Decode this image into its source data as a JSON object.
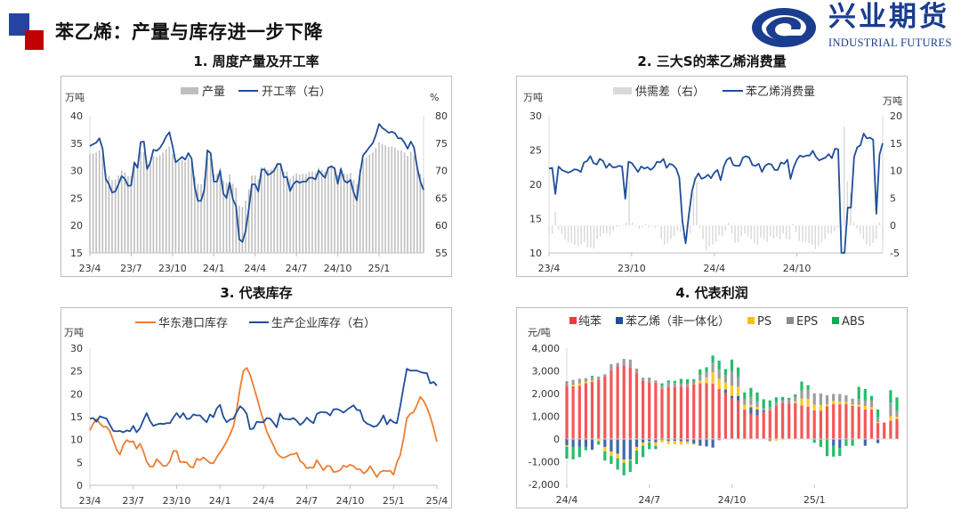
{
  "header": {
    "title": "苯乙烯：产量与库存进一步下降",
    "logo_cn": "兴业期货",
    "logo_en": "INDUSTRIAL FUTURES",
    "colors": {
      "blue": "#2444a0",
      "red": "#c00000"
    }
  },
  "panels": [
    {
      "title": "1. 周度产量及开工率"
    },
    {
      "title": "2. 三大S的苯乙烯消费量"
    },
    {
      "title": "3. 代表库存"
    },
    {
      "title": "4. 代表利润"
    }
  ],
  "chart_data": [
    {
      "type": "bar+line",
      "y_unit_left": "万吨",
      "y_unit_right": "%",
      "ylim_left": [
        15,
        40
      ],
      "ylim_right": [
        55,
        80
      ],
      "y_ticks_left": [
        "15",
        "20",
        "25",
        "30",
        "35",
        "40"
      ],
      "y_ticks_right": [
        "55",
        "60",
        "65",
        "70",
        "75",
        "80"
      ],
      "x_ticks": [
        "23/4",
        "23/7",
        "23/10",
        "24/1",
        "24/4",
        "24/7",
        "24/10",
        "25/1"
      ],
      "frequency": "weekly",
      "legend_position": "top",
      "grid": false,
      "series": [
        {
          "name": "产量",
          "type": "bar",
          "axis": "left",
          "color": "#bfbfbf",
          "values": [
            33.0,
            33.1,
            33.3,
            33.7,
            32.7,
            29.7,
            29.1,
            28.3,
            28.4,
            29.1,
            30.0,
            29.7,
            29.0,
            29.0,
            31.3,
            30.8,
            33.4,
            33.4,
            30.7,
            31.3,
            32.6,
            32.5,
            32.8,
            33.3,
            33.9,
            34.4,
            33.0,
            31.3,
            31.6,
            31.9,
            31.6,
            32.3,
            31.7,
            28.9,
            27.5,
            27.5,
            28.6,
            32.5,
            32.3,
            29.4,
            29.4,
            30.5,
            28.2,
            27.8,
            29.3,
            27.6,
            26.9,
            23.6,
            23.4,
            24.5,
            26.6,
            29.1,
            29.1,
            28.4,
            30.6,
            30.6,
            30.1,
            30.2,
            30.5,
            31.2,
            31.2,
            29.8,
            29.8,
            28.5,
            29.1,
            29.5,
            29.3,
            29.4,
            29.4,
            29.8,
            29.8,
            29.6,
            30.5,
            30.1,
            29.8,
            30.8,
            30.9,
            30.7,
            29.2,
            30.7,
            29.5,
            29.3,
            29.6,
            28.3,
            27.5,
            30.2,
            32.0,
            32.4,
            32.9,
            33.3,
            34.1,
            35.2,
            34.8,
            34.6,
            34.3,
            34.4,
            34.2,
            33.7,
            33.7,
            33.3,
            32.7,
            33.4,
            32.8,
            30.8,
            29.4,
            28.6
          ]
        },
        {
          "name": "开工率（右）",
          "type": "line",
          "axis": "right",
          "color": "#1f4e9a",
          "values": [
            74.5,
            74.8,
            75.1,
            75.9,
            74,
            68.5,
            67.5,
            66,
            66.2,
            67.5,
            69,
            68.5,
            67.2,
            67.3,
            71.5,
            70.5,
            75.2,
            75.3,
            70.3,
            71.5,
            73.8,
            73.6,
            74.1,
            75,
            76.2,
            77,
            74.5,
            71.5,
            72,
            72.5,
            72,
            73.2,
            72.2,
            67,
            64.5,
            64.5,
            66.5,
            73.7,
            73.2,
            68,
            68,
            70,
            65.8,
            65,
            67.8,
            64.8,
            63.5,
            57.5,
            57,
            59,
            63,
            67.5,
            67.5,
            66.2,
            70.2,
            70.2,
            69.2,
            69.5,
            70,
            71.2,
            71.2,
            68.8,
            68.8,
            66.3,
            67.5,
            68.1,
            67.8,
            68,
            68,
            68.7,
            68.7,
            68.4,
            70,
            69.3,
            68.7,
            70.5,
            70.8,
            70.4,
            67.6,
            70.3,
            68.2,
            67.8,
            68.3,
            66,
            64.6,
            69.5,
            72.8,
            73.5,
            74.3,
            75,
            76.5,
            78.5,
            77.8,
            77.4,
            76.9,
            77.1,
            76.8,
            75.9,
            75.9,
            75.1,
            74,
            75.3,
            74.2,
            70.5,
            68,
            66.5
          ]
        }
      ]
    },
    {
      "type": "bar+line",
      "y_unit_left": "万吨",
      "y_unit_right": "万吨",
      "ylim_left": [
        10,
        30
      ],
      "ylim_right": [
        -5,
        20
      ],
      "y_ticks_left": [
        "10",
        "15",
        "20",
        "25",
        "30"
      ],
      "y_ticks_right": [
        "-5",
        "0",
        "5",
        "10",
        "15",
        "20"
      ],
      "x_ticks": [
        "23/4",
        "23/10",
        "24/4",
        "24/10"
      ],
      "frequency": "weekly",
      "legend_position": "top",
      "grid": false,
      "series": [
        {
          "name": "供需差（右）",
          "type": "bar",
          "axis": "right",
          "color": "#d9d9d9",
          "values": [
            -1.5,
            -1.5,
            2.5,
            -0.8,
            -1.5,
            -2.5,
            -3,
            -3.2,
            -3.5,
            -3.8,
            -3.5,
            -3,
            -4,
            -4,
            -4.2,
            -2.5,
            -2,
            -1.5,
            -1.5,
            -1.8,
            -1,
            -0.3,
            -0.2,
            0.1,
            0.5,
            8,
            0.5,
            -0.2,
            -0.6,
            -0.3,
            0.2,
            -0.4,
            -0.2,
            -0.5,
            -0.3,
            -2.5,
            -3.5,
            -3.2,
            -2.5,
            -2,
            -1,
            -1.2,
            -2.5,
            -2.2,
            -1.5,
            5.9,
            8,
            -0.5,
            -2.5,
            -4.5,
            -3.8,
            -3.5,
            -3,
            -1.8,
            -2,
            -1,
            0.5,
            -1.5,
            -3.2,
            -3,
            -2,
            -1.5,
            -2,
            -2.5,
            -3.2,
            -3.5,
            -2.2,
            -2.5,
            -3,
            -2,
            -2.3,
            -2,
            -2.5,
            -1.5,
            -2.5,
            -2.6,
            0.3,
            -1.2,
            -2.8,
            -3,
            -3,
            -3.2,
            -3.5,
            -4.3,
            -3.8,
            -3,
            -2.5,
            -1.5,
            -1.5,
            -1,
            -0.3,
            -1.2,
            18,
            8,
            6,
            0.5,
            -0.5,
            -1.5,
            -2.5,
            -3.5,
            -3.8,
            -3.2,
            -2.5,
            0.5,
            -2.8
          ]
        },
        {
          "name": "苯乙烯消费量",
          "type": "line",
          "axis": "left",
          "color": "#1f4e9a",
          "values": [
            22.3,
            22.4,
            18.6,
            22.6,
            22.1,
            21.9,
            21.7,
            21.9,
            22.2,
            22.1,
            21.8,
            23.2,
            23.4,
            24.1,
            23.1,
            22.9,
            23.7,
            23.4,
            22.4,
            23,
            22.5,
            22.5,
            22.7,
            22.6,
            17.9,
            23.3,
            23.1,
            22.5,
            21.8,
            22.6,
            22.3,
            22.5,
            22.1,
            22.5,
            23.3,
            23.2,
            23.7,
            22.4,
            23,
            22.8,
            22.3,
            21,
            14.5,
            11.4,
            15.5,
            19,
            20.8,
            21.6,
            20.8,
            21,
            21.4,
            20.9,
            21.7,
            22.1,
            20.6,
            22.6,
            23.6,
            23.9,
            22.8,
            22.7,
            22.7,
            23.9,
            24.1,
            23.9,
            22.8,
            22.7,
            23,
            21.8,
            22.7,
            23,
            22.9,
            22.1,
            22.1,
            23.2,
            23,
            23.6,
            20.8,
            22.5,
            23.6,
            24.2,
            24,
            24.2,
            24.2,
            24.9,
            24,
            23.5,
            23.7,
            23.9,
            24.4,
            23.8,
            25.2,
            25.1,
            9.5,
            9.5,
            16.6,
            16.6,
            24,
            25.4,
            25.7,
            27.4,
            26.7,
            26.8,
            26.5,
            15.7,
            24.3,
            26
          ]
        }
      ]
    },
    {
      "type": "line",
      "y_unit_left": "万吨",
      "ylim_left": [
        0,
        30
      ],
      "y_ticks_left": [
        "0",
        "5",
        "10",
        "15",
        "20",
        "25",
        "30"
      ],
      "x_ticks": [
        "23/4",
        "23/7",
        "23/10",
        "24/1",
        "24/4",
        "24/7",
        "24/10",
        "25/1",
        "25/4"
      ],
      "frequency": "weekly",
      "legend_position": "top",
      "grid": false,
      "series": [
        {
          "name": "华东港口库存",
          "type": "line",
          "color": "#ed7d31",
          "values": [
            12,
            13.5,
            14.5,
            13.5,
            12.8,
            12.8,
            11.8,
            9.8,
            7.8,
            6.7,
            8.8,
            9.9,
            9.5,
            9.6,
            8,
            9.1,
            7.5,
            5.2,
            4.1,
            4.1,
            5.7,
            5,
            4.2,
            4.3,
            5.3,
            7.5,
            7.5,
            5.1,
            5.1,
            5,
            4.1,
            3.9,
            5.8,
            5.5,
            6.1,
            5.5,
            4.9,
            4.8,
            6.1,
            7.2,
            8.3,
            9.6,
            11.1,
            12.9,
            16.5,
            21.2,
            25,
            25.7,
            24.2,
            21.8,
            19.3,
            16.6,
            14.2,
            11.8,
            10.2,
            8.7,
            7.1,
            6.3,
            6,
            6.3,
            6.7,
            6.8,
            7.1,
            5.3,
            4.8,
            3.7,
            3.9,
            3.8,
            5.5,
            4.4,
            3.3,
            4.2,
            4.2,
            2.9,
            3,
            3.3,
            4.3,
            4,
            4.5,
            4.2,
            3.5,
            3.5,
            2.6,
            3.1,
            4.2,
            3,
            1.8,
            2.9,
            3.2,
            3.1,
            3.2,
            2.3,
            5,
            6.6,
            10.2,
            14.7,
            15.6,
            16,
            17.5,
            19.3,
            18.5,
            17,
            15,
            12.5,
            9.5
          ]
        },
        {
          "name": "生产企业库存（右）",
          "type": "line",
          "color": "#1f4e9a",
          "values": [
            14.6,
            14.7,
            13.9,
            15.1,
            14.8,
            14.6,
            13.2,
            11.9,
            11.8,
            11.9,
            11.6,
            12,
            11.8,
            13,
            11.6,
            12.5,
            14.2,
            15.8,
            14.1,
            13,
            13.3,
            13.5,
            13.4,
            13.6,
            13.6,
            14.8,
            15.8,
            14.8,
            15.8,
            14.5,
            14.6,
            15.5,
            15.3,
            15.3,
            14.5,
            13.8,
            15.5,
            14.9,
            16.8,
            17.6,
            15,
            13.8,
            14.4,
            14.6,
            16,
            17.3,
            16.7,
            15.6,
            12.3,
            12.4,
            13.9,
            13.8,
            13.8,
            14.7,
            14.6,
            13.7,
            12.7,
            15.7,
            14.6,
            14.5,
            14.4,
            14.7,
            14.1,
            13.2,
            13.8,
            14.8,
            14.1,
            13.6,
            15.6,
            16,
            16,
            15.9,
            15.3,
            16.6,
            16.7,
            16.4,
            15.9,
            16.5,
            17,
            17.5,
            16.5,
            16.4,
            14.2,
            13.5,
            13.2,
            12.8,
            13,
            13.9,
            15.3,
            13.3,
            14.4,
            13.8,
            13.6,
            17.3,
            21.5,
            25.5,
            25.1,
            25.1,
            25.1,
            24.8,
            24.6,
            24.5,
            22.3,
            22.6,
            21.8
          ]
        }
      ]
    },
    {
      "type": "stacked-bar",
      "y_unit_left": "元/吨",
      "ylim_left": [
        -2000,
        4000
      ],
      "y_ticks_left": [
        "-2,000",
        "-1,000",
        "0",
        "1,000",
        "2,000",
        "3,000",
        "4,000"
      ],
      "x_ticks": [
        "24/4",
        "24/7",
        "24/10",
        "25/1"
      ],
      "frequency": "weekly",
      "legend_position": "top",
      "grid": false,
      "series": [
        {
          "name": "纯苯",
          "color": "#f23a3a",
          "values": [
            2330,
            2320,
            2350,
            2450,
            2520,
            2600,
            2750,
            3000,
            3200,
            3230,
            3150,
            2900,
            2550,
            2500,
            2480,
            2200,
            2280,
            2280,
            2300,
            2280,
            2400,
            2450,
            2460,
            2430,
            2200,
            2030,
            1800,
            1700,
            1300,
            1100,
            1050,
            1200,
            1250,
            1480,
            1600,
            1560,
            1580,
            1480,
            1420,
            1260,
            1250,
            1430,
            1530,
            1530,
            1550,
            1450,
            1420,
            1300,
            1300,
            700,
            720,
            800,
            880
          ]
        },
        {
          "name": "苯乙烯（非一体化）",
          "color": "#1f4e9a",
          "values": [
            -280,
            -350,
            -350,
            -350,
            -480,
            0,
            -350,
            -550,
            -650,
            -900,
            -900,
            -350,
            -150,
            -100,
            -150,
            -50,
            -80,
            -80,
            -100,
            -100,
            -200,
            -300,
            -330,
            -380,
            -50,
            150,
            100,
            200,
            0,
            300,
            250,
            80,
            -60,
            0,
            0,
            0,
            0,
            0,
            0,
            -20,
            0,
            -50,
            -300,
            -400,
            -50,
            -50,
            0,
            -300,
            0,
            -180,
            0,
            0,
            0
          ]
        },
        {
          "name": "PS",
          "color": "#ffc000",
          "values": [
            -60,
            60,
            100,
            80,
            50,
            -100,
            -200,
            -200,
            -200,
            -150,
            -50,
            -150,
            -150,
            -50,
            -150,
            -100,
            -150,
            -150,
            -150,
            -120,
            -60,
            120,
            250,
            500,
            450,
            300,
            450,
            400,
            200,
            100,
            100,
            20,
            -50,
            -80,
            -50,
            -20,
            80,
            300,
            350,
            250,
            250,
            100,
            150,
            100,
            80,
            80,
            80,
            150,
            100,
            50,
            0,
            200,
            100
          ]
        },
        {
          "name": "EPS",
          "color": "#8c8c8c",
          "values": [
            220,
            220,
            200,
            150,
            150,
            150,
            100,
            300,
            150,
            300,
            350,
            200,
            150,
            200,
            100,
            150,
            200,
            180,
            150,
            150,
            130,
            250,
            250,
            450,
            400,
            350,
            650,
            450,
            250,
            350,
            250,
            50,
            150,
            150,
            100,
            150,
            200,
            350,
            400,
            500,
            500,
            400,
            300,
            350,
            300,
            250,
            250,
            250,
            300,
            200,
            0,
            600,
            250
          ]
        },
        {
          "name": "ABS",
          "color": "#00b050",
          "values": [
            -520,
            -550,
            -450,
            -150,
            60,
            -150,
            -400,
            -350,
            -500,
            -550,
            -500,
            -600,
            -500,
            -300,
            -150,
            100,
            100,
            100,
            200,
            200,
            100,
            250,
            200,
            300,
            400,
            250,
            500,
            400,
            300,
            400,
            400,
            400,
            300,
            200,
            150,
            100,
            100,
            400,
            200,
            -150,
            -350,
            -700,
            -480,
            -350,
            -250,
            -250,
            550,
            500,
            200,
            350,
            0,
            550,
            600
          ]
        }
      ]
    }
  ]
}
